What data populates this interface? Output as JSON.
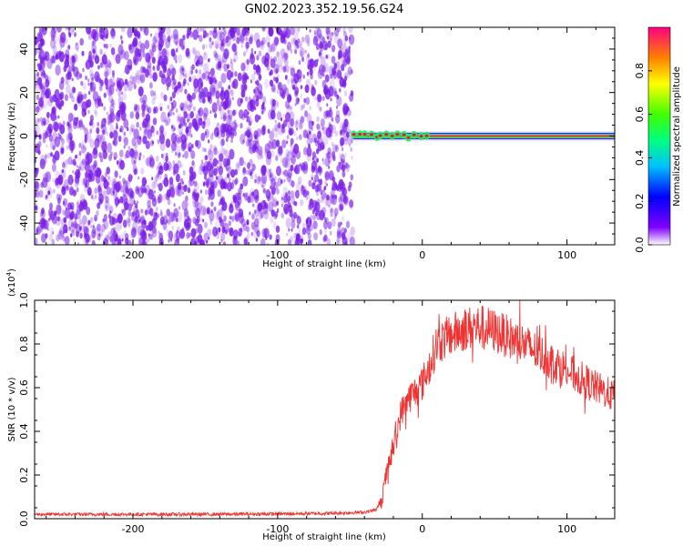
{
  "title": "GN02.2023.352.19.56.G24",
  "colors": {
    "snr_line": "#ee3333",
    "noise": "#7a1de6",
    "track_core": "#e8123c"
  },
  "chart_data": [
    {
      "type": "heatmap",
      "xlabel": "Height of straight line (km)",
      "ylabel": "Frequency (Hz)",
      "xlim": [
        -268,
        133
      ],
      "ylim": [
        -50,
        50
      ],
      "x_ticks": [
        -200,
        -100,
        0,
        100
      ],
      "y_ticks": [
        -40,
        -20,
        0,
        20,
        40
      ],
      "noise_region_x": [
        -268,
        -48
      ],
      "signal_track": {
        "x_start": -48,
        "x_end": 133,
        "frequency": 0
      },
      "colorbar": {
        "label": "Normalized spectral amplitude",
        "range": [
          0,
          1
        ],
        "ticks": [
          0.0,
          0.2,
          0.4,
          0.6,
          0.8
        ],
        "tick_labels": [
          "0.0",
          "0.2",
          "0.4",
          "0.6",
          "0.8"
        ]
      }
    },
    {
      "type": "line",
      "xlabel": "Height of straight line (km)",
      "ylabel": "SNR (10 * v/v)",
      "multiplier": "(x10",
      "multiplier_exp": "4",
      "multiplier_close": ")",
      "xlim": [
        -268,
        133
      ],
      "ylim": [
        0,
        1.0
      ],
      "x_ticks": [
        -200,
        -100,
        0,
        100
      ],
      "y_ticks": [
        0.0,
        0.2,
        0.4,
        0.6,
        0.8,
        1.0
      ],
      "y_tick_labels": [
        "0.0",
        "0.2",
        "0.4",
        "0.6",
        "0.8",
        "1.0"
      ],
      "series": [
        {
          "x": [
            -268,
            -200,
            -150,
            -100,
            -60,
            -40,
            -32,
            -28,
            -25,
            -20,
            -15,
            -10,
            -5,
            0,
            5,
            10,
            20,
            30,
            40,
            50,
            60,
            70,
            80,
            90,
            100,
            110,
            120,
            133
          ],
          "y": [
            0.02,
            0.02,
            0.02,
            0.022,
            0.025,
            0.03,
            0.04,
            0.08,
            0.2,
            0.32,
            0.48,
            0.55,
            0.58,
            0.62,
            0.7,
            0.8,
            0.84,
            0.87,
            0.88,
            0.86,
            0.83,
            0.8,
            0.76,
            0.72,
            0.68,
            0.64,
            0.6,
            0.56
          ]
        }
      ]
    }
  ]
}
